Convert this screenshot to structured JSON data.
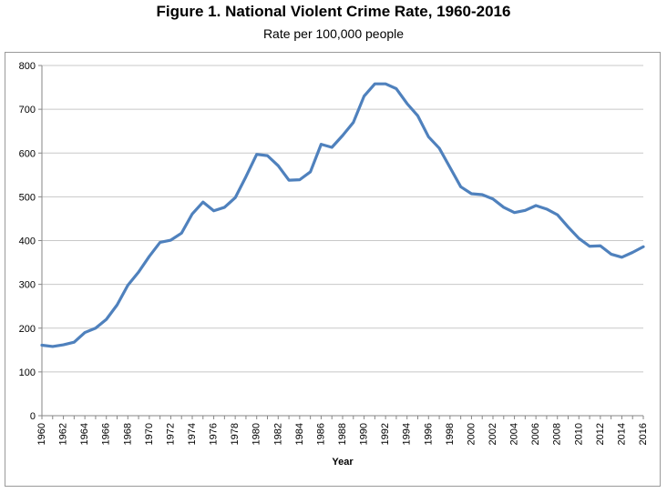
{
  "chart_data": {
    "type": "line",
    "title": "Figure 1. National Violent Crime Rate, 1960-2016",
    "subtitle": "Rate per 100,000 people",
    "xlabel": "Year",
    "ylabel": "",
    "xlim": [
      1960,
      2016
    ],
    "ylim": [
      0,
      800
    ],
    "yticks": [
      0,
      100,
      200,
      300,
      400,
      500,
      600,
      700,
      800
    ],
    "xticks": [
      "1960",
      "1962",
      "1964",
      "1966",
      "1968",
      "1970",
      "1972",
      "1974",
      "1976",
      "1978",
      "1980",
      "1982",
      "1984",
      "1986",
      "1988",
      "1990",
      "1992",
      "1994",
      "1996",
      "1998",
      "2000",
      "2002",
      "2004",
      "2006",
      "2008",
      "2010",
      "2012",
      "2014",
      "2016"
    ],
    "grid": "horizontal",
    "series_color": "#4f81bd",
    "series": [
      {
        "x": [
          1960,
          1961,
          1962,
          1963,
          1964,
          1965,
          1966,
          1967,
          1968,
          1969,
          1970,
          1971,
          1972,
          1973,
          1974,
          1975,
          1976,
          1977,
          1978,
          1979,
          1980,
          1981,
          1982,
          1983,
          1984,
          1985,
          1986,
          1987,
          1988,
          1989,
          1990,
          1991,
          1992,
          1993,
          1994,
          1995,
          1996,
          1997,
          1998,
          1999,
          2000,
          2001,
          2002,
          2003,
          2004,
          2005,
          2006,
          2007,
          2008,
          2009,
          2010,
          2011,
          2012,
          2013,
          2014,
          2015,
          2016
        ],
        "values": [
          161,
          158,
          162,
          168,
          190,
          200,
          220,
          253,
          298,
          328,
          364,
          396,
          401,
          417,
          461,
          488,
          468,
          476,
          498,
          546,
          597,
          594,
          571,
          538,
          539,
          557,
          620,
          613,
          640,
          670,
          730,
          758,
          758,
          747,
          713,
          685,
          637,
          611,
          567,
          523,
          507,
          505,
          495,
          476,
          464,
          469,
          480,
          472,
          459,
          431,
          405,
          387,
          388,
          369,
          362,
          373,
          386
        ]
      }
    ]
  }
}
